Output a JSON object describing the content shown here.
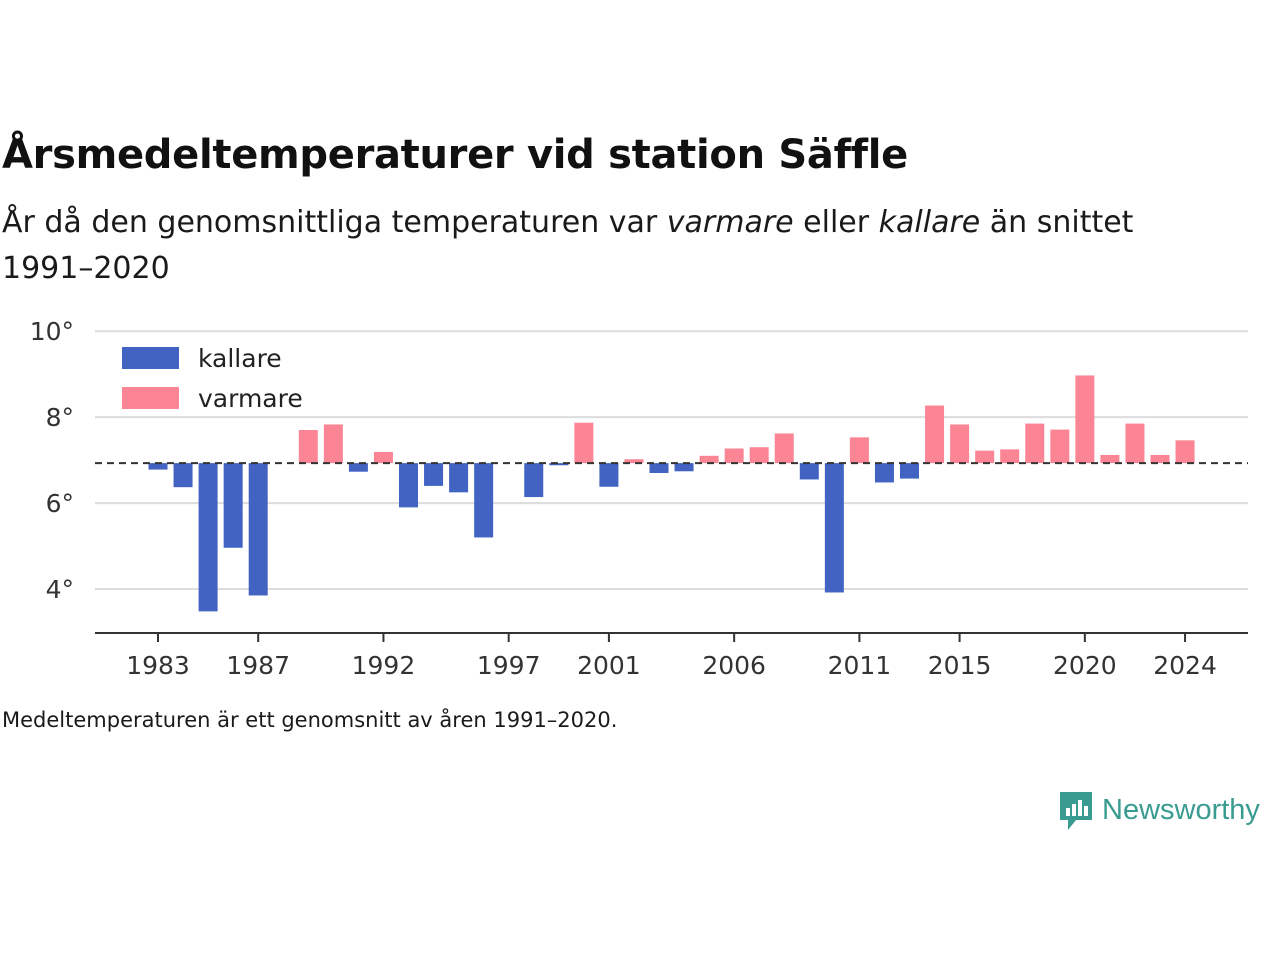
{
  "header": {
    "title": "Årsmedeltemperaturer vid station Säffle",
    "subtitle_pre": "År då den genomsnittliga temperaturen var ",
    "subtitle_warm": "varmare",
    "subtitle_mid": " eller ",
    "subtitle_cold": "kallare",
    "subtitle_post": " än snittet 1991–2020"
  },
  "footer": {
    "note": "Medeltemperaturen är ett genomsnitt av åren 1991–2020.",
    "brand": "Newsworthy"
  },
  "chart_data": {
    "type": "bar",
    "baseline": 6.93,
    "ylim": [
      3.0,
      10.4
    ],
    "yticks": [
      4,
      6,
      8,
      10
    ],
    "ytick_labels": [
      "4°",
      "6°",
      "8°",
      "10°"
    ],
    "xticks": [
      1983,
      1987,
      1992,
      1997,
      2001,
      2006,
      2011,
      2015,
      2020,
      2024
    ],
    "grid": true,
    "legend_position": "top-left",
    "colors": {
      "kallare": "#4263c2",
      "varmare": "#fb8595"
    },
    "legend": [
      {
        "key": "kallare",
        "label": "kallare"
      },
      {
        "key": "varmare",
        "label": "varmare"
      }
    ],
    "x": [
      1983,
      1984,
      1985,
      1986,
      1987,
      1988,
      1989,
      1990,
      1991,
      1992,
      1993,
      1994,
      1995,
      1996,
      1997,
      1998,
      1999,
      2000,
      2001,
      2002,
      2003,
      2004,
      2005,
      2006,
      2007,
      2008,
      2009,
      2010,
      2011,
      2012,
      2013,
      2014,
      2015,
      2016,
      2017,
      2018,
      2019,
      2020,
      2021,
      2022,
      2023,
      2024
    ],
    "values": [
      6.78,
      6.37,
      3.48,
      4.96,
      3.85,
      null,
      7.7,
      7.83,
      6.73,
      7.19,
      5.9,
      6.4,
      6.25,
      5.2,
      null,
      6.14,
      6.88,
      7.87,
      6.38,
      7.02,
      6.7,
      6.74,
      7.1,
      7.27,
      7.3,
      7.62,
      6.55,
      3.92,
      7.53,
      6.48,
      6.57,
      8.27,
      7.83,
      7.22,
      7.25,
      7.85,
      7.71,
      8.97,
      7.12,
      7.85,
      7.12,
      7.46
    ]
  }
}
